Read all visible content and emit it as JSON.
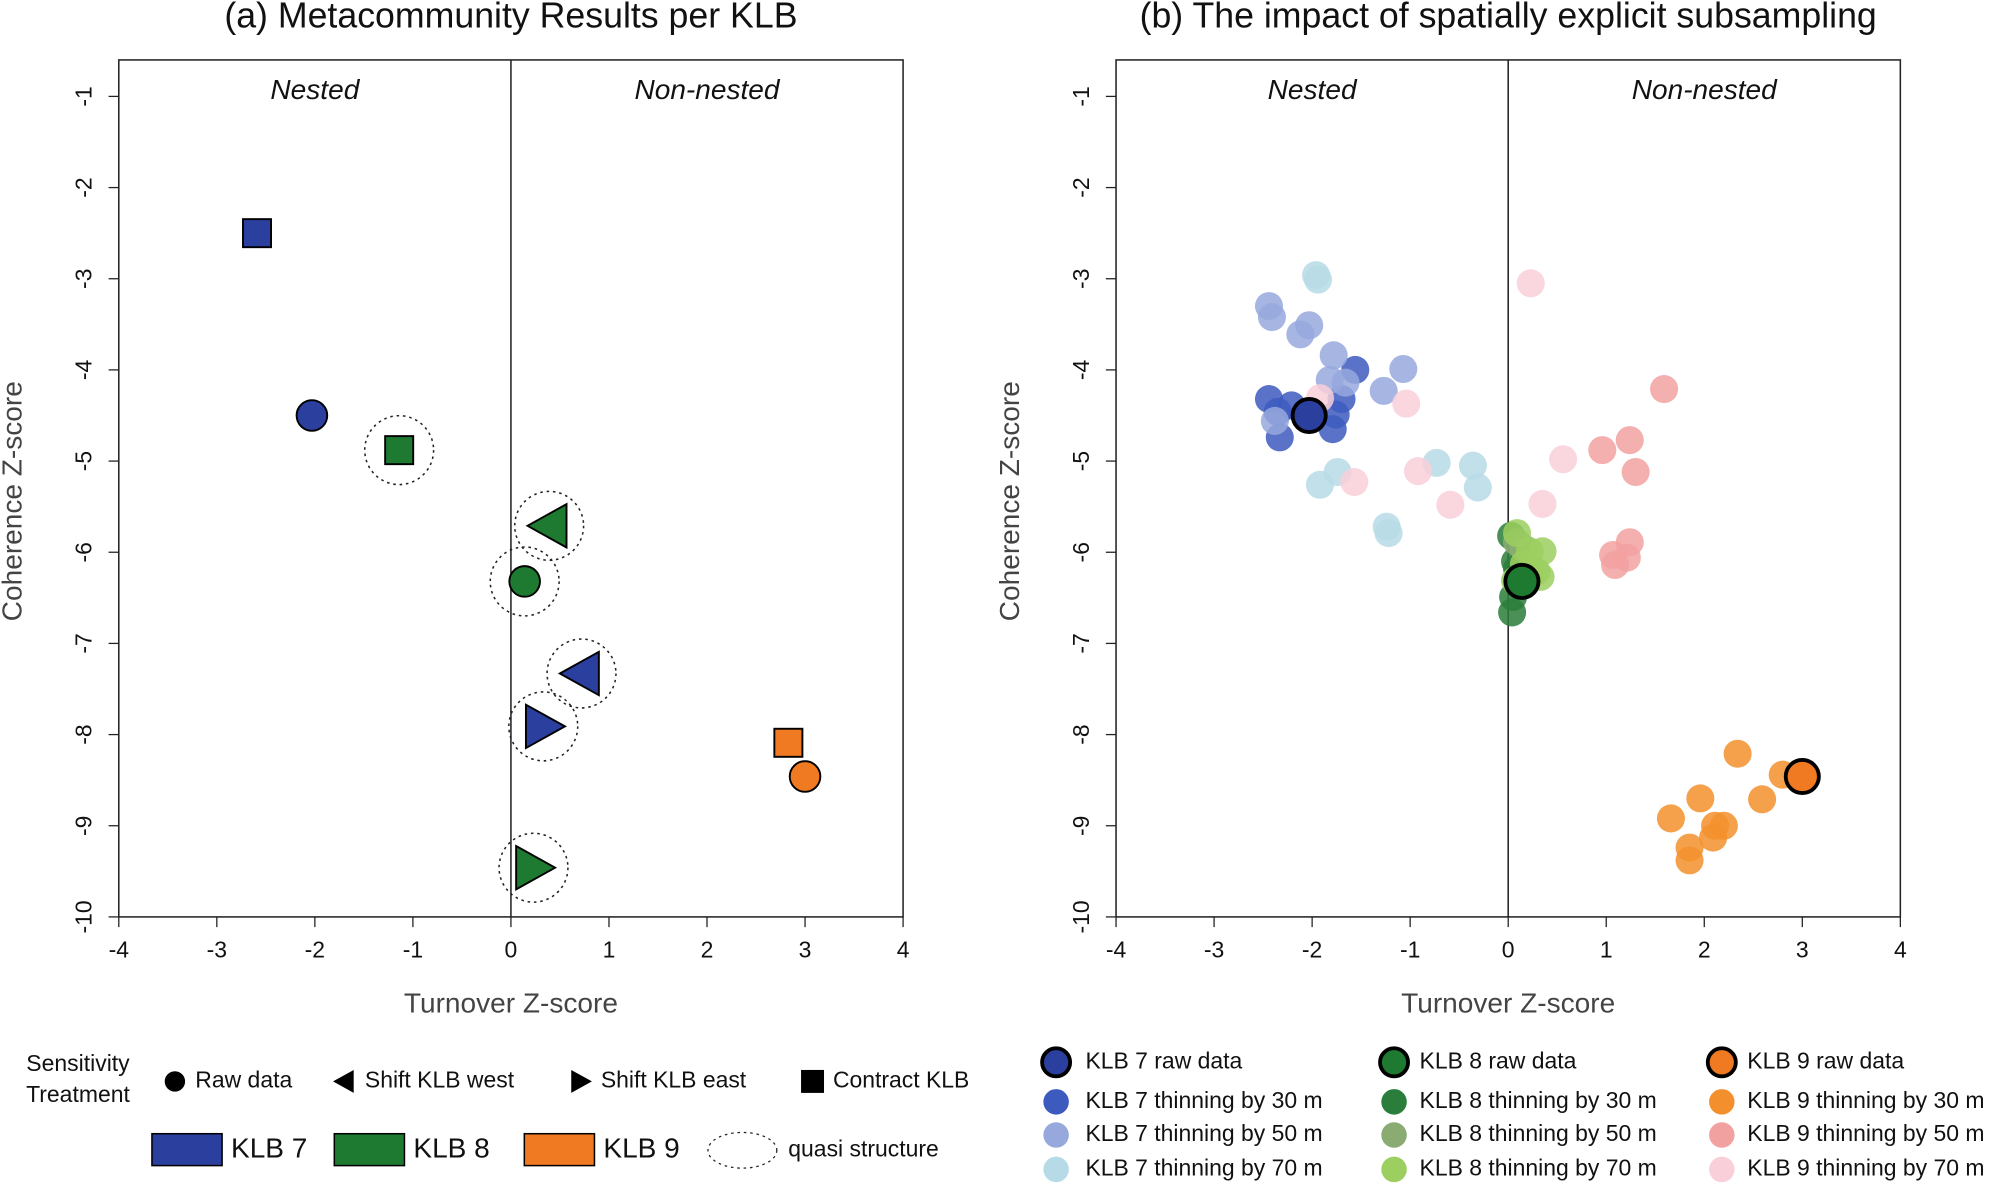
{
  "chart_data": [
    {
      "type": "scatter",
      "title": "(a) Metacommunity Results per KLB",
      "xlabel": "Turnover Z-score",
      "ylabel": "Coherence Z-score",
      "quadrant_labels": [
        "Nested",
        "Non-nested"
      ],
      "xlim": [
        -4,
        4
      ],
      "ylim": [
        -10,
        -0.6
      ],
      "xticks": [
        -4,
        -3,
        -2,
        -1,
        0,
        1,
        2,
        3,
        4
      ],
      "yticks": [
        -1,
        -2,
        -3,
        -4,
        -5,
        -6,
        -7,
        -8,
        -9,
        -10
      ],
      "legend_title": "Sensitivity Treatment",
      "markers": [
        {
          "name": "Raw data",
          "shape": "circle"
        },
        {
          "name": "Shift KLB west",
          "shape": "triangle-left"
        },
        {
          "name": "Shift KLB east",
          "shape": "triangle-right"
        },
        {
          "name": "Contract KLB",
          "shape": "square"
        }
      ],
      "quasi_label": "quasi structure",
      "series": [
        {
          "name": "KLB 7",
          "color": "#2b3f9e",
          "x": [
            -2.03,
            0.72,
            0.33,
            -2.59
          ],
          "values": [
            -4.5,
            -7.33,
            -7.91,
            -2.5
          ],
          "shapes": [
            "circle",
            "triangle-left",
            "triangle-right",
            "square"
          ],
          "quasi": [
            false,
            true,
            true,
            false
          ]
        },
        {
          "name": "KLB 8",
          "color": "#1e7a30",
          "x": [
            0.14,
            0.39,
            0.23,
            -1.14
          ],
          "values": [
            -6.32,
            -5.71,
            -9.46,
            -4.88
          ],
          "shapes": [
            "circle",
            "triangle-left",
            "triangle-right",
            "square"
          ],
          "quasi": [
            true,
            true,
            true,
            true
          ]
        },
        {
          "name": "KLB 9",
          "color": "#f07a22",
          "x": [
            3.0,
            2.83
          ],
          "values": [
            -8.46,
            -8.09
          ],
          "shapes": [
            "circle",
            "square"
          ],
          "quasi": [
            false,
            false
          ]
        }
      ]
    },
    {
      "type": "scatter",
      "title": "(b) The impact of spatially explicit subsampling",
      "xlabel": "Turnover Z-score",
      "ylabel": "Coherence Z-score",
      "quadrant_labels": [
        "Nested",
        "Non-nested"
      ],
      "xlim": [
        -4,
        4
      ],
      "ylim": [
        -10,
        -0.6
      ],
      "xticks": [
        -4,
        -3,
        -2,
        -1,
        0,
        1,
        2,
        3,
        4
      ],
      "yticks": [
        -1,
        -2,
        -3,
        -4,
        -5,
        -6,
        -7,
        -8,
        -9,
        -10
      ],
      "series": [
        {
          "name": "KLB 7 raw data",
          "color": "#2b3f9e",
          "edgecolor": "#000000",
          "x": [
            -2.03
          ],
          "values": [
            -4.5
          ]
        },
        {
          "name": "KLB 7 thinning by 30 m",
          "color": "#3d5bbf",
          "x": [
            -2.44,
            -2.33,
            -2.21,
            -2.35,
            -1.76,
            -1.79,
            -1.56,
            -1.7
          ],
          "values": [
            -4.32,
            -4.74,
            -4.39,
            -4.46,
            -4.49,
            -4.65,
            -4.0,
            -4.32
          ]
        },
        {
          "name": "KLB 7 thinning by 50 m",
          "color": "#97a8dd",
          "x": [
            -2.44,
            -2.41,
            -2.12,
            -2.03,
            -1.78,
            -1.82,
            -1.27,
            -1.07,
            -2.38,
            -1.66
          ],
          "values": [
            -3.3,
            -3.42,
            -3.61,
            -3.51,
            -3.84,
            -4.11,
            -4.23,
            -3.99,
            -4.56,
            -4.14
          ]
        },
        {
          "name": "KLB 7 thinning by 70 m",
          "color": "#b7dbe6",
          "x": [
            -1.96,
            -1.94,
            -1.92,
            -1.74,
            -1.24,
            -1.22,
            -0.73,
            -0.31,
            -0.36
          ],
          "values": [
            -2.96,
            -3.01,
            -5.26,
            -5.12,
            -5.72,
            -5.79,
            -5.02,
            -5.29,
            -5.05
          ]
        },
        {
          "name": "KLB 8 raw data",
          "color": "#1e7a30",
          "edgecolor": "#000000",
          "x": [
            0.14
          ],
          "values": [
            -6.32
          ]
        },
        {
          "name": "KLB 8 thinning by 30 m",
          "color": "#2a7d3a",
          "x": [
            0.04,
            0.05,
            0.07,
            0.03,
            0.09
          ],
          "values": [
            -6.66,
            -6.49,
            -6.1,
            -5.82,
            -6.18
          ]
        },
        {
          "name": "KLB 8 thinning by 50 m",
          "color": "#8aab72",
          "x": [
            0.16,
            0.22,
            0.09
          ],
          "values": [
            -5.96,
            -6.24,
            -5.89
          ]
        },
        {
          "name": "KLB 8 thinning by 70 m",
          "color": "#9ccf5f",
          "x": [
            0.09,
            0.22,
            0.35,
            0.29,
            0.16,
            0.07,
            0.33
          ],
          "values": [
            -5.79,
            -5.99,
            -5.99,
            -6.21,
            -6.13,
            -6.31,
            -6.27
          ]
        },
        {
          "name": "KLB 9 raw data",
          "color": "#f07a22",
          "edgecolor": "#000000",
          "x": [
            3.0
          ],
          "values": [
            -8.46
          ]
        },
        {
          "name": "KLB 9 thinning by 30 m",
          "color": "#f3902d",
          "x": [
            1.66,
            1.85,
            1.96,
            2.09,
            2.2,
            2.34,
            2.59,
            2.8,
            1.85,
            2.11
          ],
          "values": [
            -8.92,
            -9.24,
            -8.7,
            -9.13,
            -9.0,
            -8.21,
            -8.71,
            -8.44,
            -9.38,
            -9.0
          ]
        },
        {
          "name": "KLB 9 thinning by 50 m",
          "color": "#f2a1a1",
          "x": [
            1.59,
            0.96,
            1.24,
            1.3,
            1.07,
            1.09,
            1.24,
            1.21
          ],
          "values": [
            -4.21,
            -4.88,
            -4.77,
            -5.12,
            -6.03,
            -6.14,
            -5.89,
            -6.06
          ]
        },
        {
          "name": "KLB 9 thinning by 70 m",
          "color": "#f9cfd9",
          "x": [
            0.23,
            0.56,
            0.35,
            -0.59,
            -0.92,
            -1.04,
            -1.57,
            -1.92
          ],
          "values": [
            -3.05,
            -4.98,
            -5.47,
            -5.48,
            -5.11,
            -4.37,
            -5.23,
            -4.31
          ]
        }
      ]
    }
  ]
}
